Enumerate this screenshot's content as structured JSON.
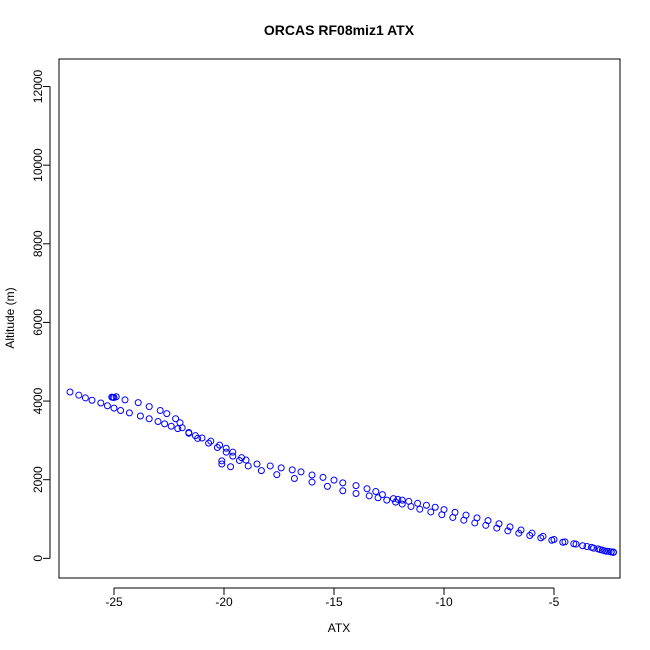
{
  "chart_data": {
    "type": "scatter",
    "title": "ORCAS RF08miz1 ATX",
    "xlabel": "ATX",
    "ylabel": "Altitude (m)",
    "xlim": [
      -27.5,
      -2.0
    ],
    "ylim": [
      -500,
      12700
    ],
    "xticks": [
      -25,
      -20,
      -15,
      -10,
      -5
    ],
    "yticks": [
      0,
      2000,
      4000,
      6000,
      8000,
      10000,
      12000
    ],
    "grid": false,
    "marker_color": "#0000ff",
    "series": [
      {
        "points": [
          [
            -27.0,
            4230
          ],
          [
            -26.6,
            4150
          ],
          [
            -26.3,
            4080
          ],
          [
            -26.0,
            4020
          ],
          [
            -25.6,
            3950
          ],
          [
            -25.3,
            3880
          ],
          [
            -25.0,
            3820
          ],
          [
            -24.7,
            3760
          ],
          [
            -24.3,
            3700
          ],
          [
            -23.8,
            3620
          ],
          [
            -23.4,
            3550
          ],
          [
            -23.0,
            3480
          ],
          [
            -22.7,
            3420
          ],
          [
            -22.4,
            3360
          ],
          [
            -22.1,
            3300
          ],
          [
            -21.6,
            3200
          ],
          [
            -21.3,
            3120
          ],
          [
            -21.0,
            3060
          ],
          [
            -20.6,
            2980
          ],
          [
            -20.2,
            2880
          ],
          [
            -19.9,
            2800
          ],
          [
            -19.6,
            2700
          ],
          [
            -19.2,
            2560
          ],
          [
            -19.0,
            2500
          ],
          [
            -18.5,
            2400
          ],
          [
            -17.9,
            2350
          ],
          [
            -17.4,
            2300
          ],
          [
            -16.9,
            2250
          ],
          [
            -16.5,
            2200
          ],
          [
            -16.0,
            2120
          ],
          [
            -15.5,
            2060
          ],
          [
            -15.0,
            1990
          ],
          [
            -14.6,
            1920
          ],
          [
            -14.0,
            1850
          ],
          [
            -13.5,
            1770
          ],
          [
            -13.1,
            1700
          ],
          [
            -12.8,
            1620
          ],
          [
            -12.3,
            1520
          ],
          [
            -12.1,
            1500
          ],
          [
            -11.9,
            1480
          ],
          [
            -11.6,
            1450
          ],
          [
            -11.2,
            1400
          ],
          [
            -10.8,
            1350
          ],
          [
            -10.4,
            1300
          ],
          [
            -10.0,
            1240
          ],
          [
            -9.5,
            1170
          ],
          [
            -9.0,
            1100
          ],
          [
            -8.5,
            1030
          ],
          [
            -8.0,
            960
          ],
          [
            -7.5,
            880
          ],
          [
            -7.0,
            800
          ],
          [
            -6.5,
            720
          ],
          [
            -6.0,
            640
          ],
          [
            -5.5,
            560
          ],
          [
            -5.0,
            480
          ],
          [
            -4.5,
            420
          ],
          [
            -4.0,
            360
          ],
          [
            -3.5,
            300
          ],
          [
            -3.2,
            260
          ],
          [
            -2.9,
            220
          ],
          [
            -2.7,
            190
          ],
          [
            -2.5,
            175
          ],
          [
            -2.4,
            165
          ],
          [
            -2.3,
            160
          ],
          [
            -2.3,
            150
          ],
          [
            -2.4,
            160
          ],
          [
            -2.6,
            180
          ],
          [
            -2.8,
            210
          ],
          [
            -3.0,
            240
          ],
          [
            -3.3,
            280
          ],
          [
            -3.7,
            320
          ],
          [
            -4.1,
            370
          ],
          [
            -4.6,
            410
          ],
          [
            -5.1,
            460
          ],
          [
            -5.6,
            520
          ],
          [
            -6.1,
            580
          ],
          [
            -6.6,
            640
          ],
          [
            -7.1,
            700
          ],
          [
            -7.6,
            770
          ],
          [
            -8.1,
            840
          ],
          [
            -8.6,
            900
          ],
          [
            -9.1,
            970
          ],
          [
            -9.6,
            1040
          ],
          [
            -10.1,
            1110
          ],
          [
            -10.6,
            1180
          ],
          [
            -11.1,
            1250
          ],
          [
            -11.5,
            1320
          ],
          [
            -11.9,
            1380
          ],
          [
            -12.2,
            1430
          ],
          [
            -12.6,
            1480
          ],
          [
            -13.0,
            1540
          ],
          [
            -13.4,
            1590
          ],
          [
            -14.0,
            1650
          ],
          [
            -14.6,
            1720
          ],
          [
            -15.3,
            1830
          ],
          [
            -16.0,
            1940
          ],
          [
            -16.8,
            2030
          ],
          [
            -17.6,
            2130
          ],
          [
            -18.3,
            2230
          ],
          [
            -18.9,
            2350
          ],
          [
            -19.3,
            2490
          ],
          [
            -19.6,
            2600
          ],
          [
            -19.9,
            2700
          ],
          [
            -20.3,
            2820
          ],
          [
            -20.7,
            2930
          ],
          [
            -21.2,
            3050
          ],
          [
            -21.6,
            3180
          ],
          [
            -21.9,
            3320
          ],
          [
            -22.0,
            3450
          ],
          [
            -22.2,
            3550
          ],
          [
            -22.6,
            3680
          ],
          [
            -22.9,
            3760
          ],
          [
            -23.4,
            3860
          ],
          [
            -23.9,
            3960
          ],
          [
            -24.5,
            4030
          ],
          [
            -25.0,
            4090
          ],
          [
            -25.1,
            4100
          ],
          [
            -24.9,
            4110
          ],
          [
            -25.05,
            4095
          ],
          [
            -20.1,
            2480
          ],
          [
            -20.1,
            2400
          ],
          [
            -19.7,
            2330
          ]
        ]
      }
    ]
  }
}
